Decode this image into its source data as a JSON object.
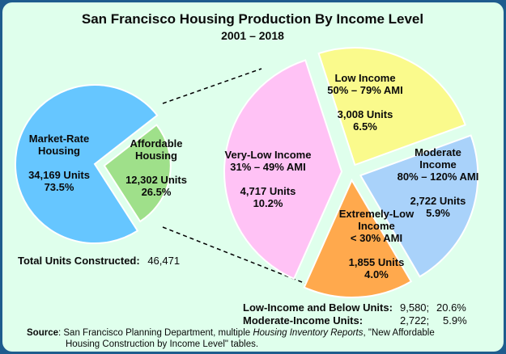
{
  "chart_data": {
    "type": "pie",
    "title": "San Francisco Housing Production By Income Level",
    "subtitle": "2001 – 2018",
    "primary_pie": {
      "slices": [
        {
          "label_lines": [
            "Market-Rate",
            "Housing"
          ],
          "units": "34,169 Units",
          "pct_text": "73.5%",
          "value": 34169,
          "percent": 73.5,
          "color": "#66c6ff"
        },
        {
          "label_lines": [
            "Affordable",
            "Housing"
          ],
          "units": "12,302 Units",
          "pct_text": "26.5%",
          "value": 12302,
          "percent": 26.5,
          "color": "#9fe08a"
        }
      ]
    },
    "breakdown_pie": {
      "slices": [
        {
          "label_lines": [
            "Very-Low Income",
            "31% – 49% AMI"
          ],
          "units": "4,717 Units",
          "pct_text": "10.2%",
          "value": 4717,
          "percent": 10.2,
          "color": "#ffc2f5"
        },
        {
          "label_lines": [
            "Low Income",
            "50% – 79% AMI"
          ],
          "units": "3,008 Units",
          "pct_text": "6.5%",
          "value": 3008,
          "percent": 6.5,
          "color": "#fafa8c"
        },
        {
          "label_lines": [
            "Moderate",
            "Income",
            "80% – 120% AMI"
          ],
          "units": "2,722 Units",
          "pct_text": "5.9%",
          "value": 2722,
          "percent": 5.9,
          "color": "#a9d2fa"
        },
        {
          "label_lines": [
            "Extremely-Low",
            "Income",
            "< 30% AMI"
          ],
          "units": "1,855 Units",
          "pct_text": "4.0%",
          "value": 1855,
          "percent": 4.0,
          "color": "#ffa94d"
        }
      ]
    },
    "total": {
      "label": "Total Units Constructed:",
      "value": "46,471"
    },
    "summary": [
      {
        "label": "Low-Income and Below Units:",
        "units": "9,580;",
        "pct": "20.6%"
      },
      {
        "label": "Moderate-Income Units:",
        "units": "2,722;",
        "pct": "5.9%"
      }
    ],
    "source": {
      "label": "Source",
      "line1_a": ":  San Francisco Planning Department, multiple ",
      "line1_italic": "Housing Inventory Reports",
      "line1_b": ", \"New Affordable",
      "line2": "Housing Construction by Income Level\" tables."
    }
  },
  "colors": {
    "border": "#1e5c8e",
    "background": "#dfffec",
    "slice_stroke": "#ffffff"
  }
}
